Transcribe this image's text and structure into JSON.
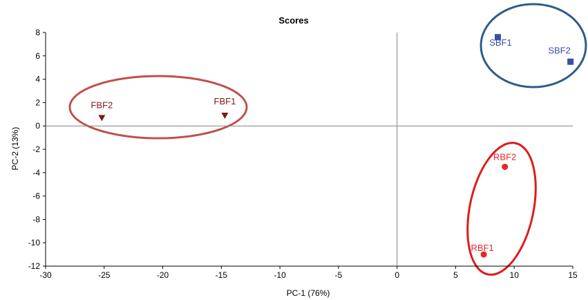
{
  "chart_data": {
    "type": "scatter",
    "title": "Scores",
    "xlabel": "PC-1 (76%)",
    "ylabel": "PC-2 (13%)",
    "xlim": [
      -30,
      15
    ],
    "ylim": [
      -12,
      8
    ],
    "xticks": [
      -30,
      -25,
      -20,
      -15,
      -10,
      -5,
      0,
      5,
      10,
      15
    ],
    "yticks": [
      8,
      6,
      4,
      2,
      0,
      -2,
      -4,
      -6,
      -8,
      -10,
      -12
    ],
    "grid": false,
    "zero_lines": true,
    "groups": [
      {
        "marker": "triangle-down",
        "color": "#7b1a1a",
        "ring_color": "#c0504d",
        "points": [
          {
            "label": "FBF2",
            "x": -25.2,
            "y": 0.7
          },
          {
            "label": "FBF1",
            "x": -14.7,
            "y": 0.9
          }
        ]
      },
      {
        "marker": "square",
        "color": "#3b4ea8",
        "ring_color": "#2f5b8a",
        "points": [
          {
            "label": "SBF1",
            "x": 8.6,
            "y": 7.6
          },
          {
            "label": "SBF2",
            "x": 14.8,
            "y": 5.5
          }
        ]
      },
      {
        "marker": "circle",
        "color": "#e8262b",
        "ring_color": "#e01b1b",
        "points": [
          {
            "label": "RBF2",
            "x": 9.2,
            "y": -3.5
          },
          {
            "label": "RBF1",
            "x": 7.4,
            "y": -11.0
          }
        ]
      }
    ]
  }
}
